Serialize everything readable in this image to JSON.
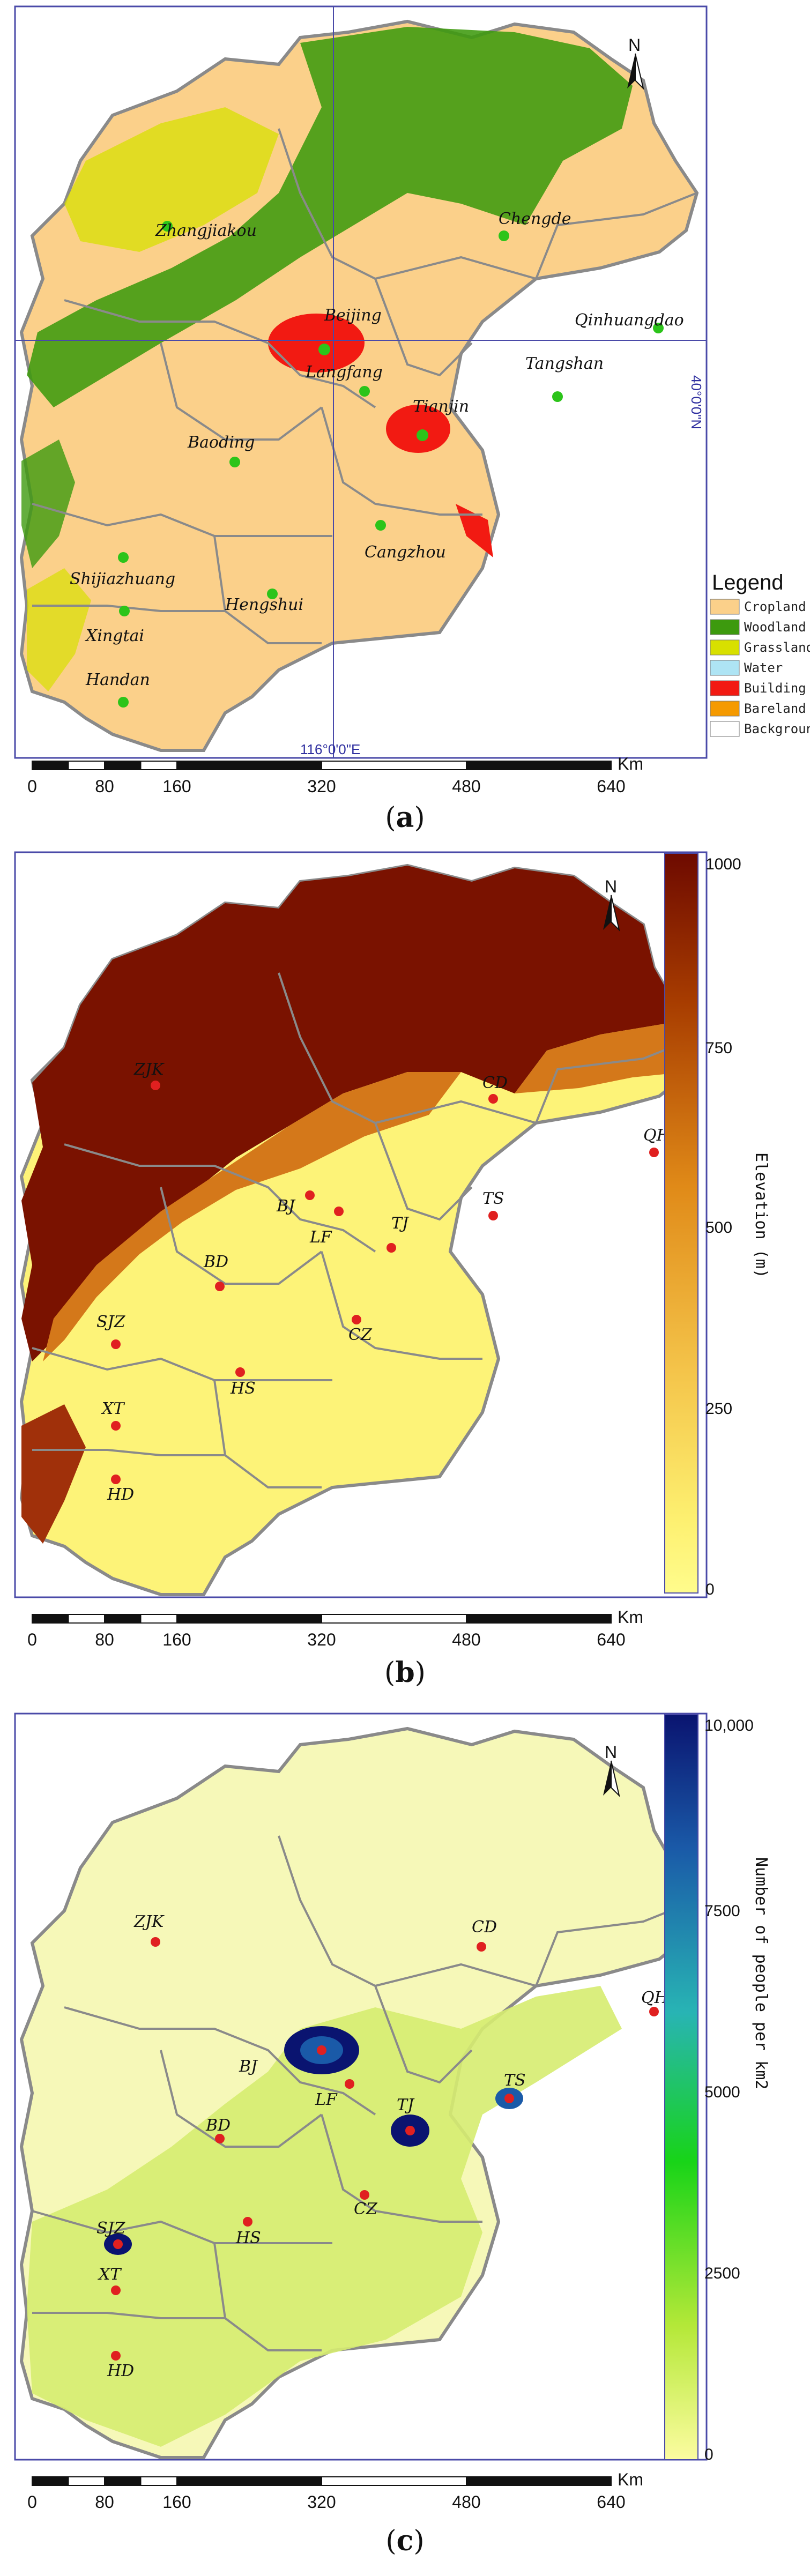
{
  "panels": [
    {
      "id": "a",
      "caption_open": "(",
      "caption_letter": "a",
      "caption_close": ")",
      "north": "N",
      "coord_lat": "40°0'0\"N",
      "coord_lon": "116°0'0\"E",
      "cities": [
        "Zhangjiakou",
        "Chengde",
        "Beijing",
        "Qinhuangdao",
        "Tangshan",
        "Langfang",
        "Tianjin",
        "Baoding",
        "Cangzhou",
        "Shijiazhuang",
        "Hengshui",
        "Xingtai",
        "Handan"
      ],
      "legend_title": "Legend",
      "legend": [
        {
          "label": "Cropland",
          "color": "#fbd08a"
        },
        {
          "label": "Woodland",
          "color": "#3d9a0e"
        },
        {
          "label": "Grassland",
          "color": "#d8e000"
        },
        {
          "label": "Water",
          "color": "#aee4f4"
        },
        {
          "label": "Building",
          "color": "#f21a12"
        },
        {
          "label": "Bareland",
          "color": "#f59a00"
        },
        {
          "label": "Background",
          "color": "#ffffff"
        }
      ]
    },
    {
      "id": "b",
      "caption_open": "(",
      "caption_letter": "b",
      "caption_close": ")",
      "north": "N",
      "cities": [
        "ZJK",
        "CD",
        "QHD",
        "BJ",
        "TS",
        "LF",
        "TJ",
        "BD",
        "SJZ",
        "CZ",
        "HS",
        "XT",
        "HD"
      ],
      "colorbar_label": "Elevation (m)",
      "colorbar_ticks": [
        "1000",
        "750",
        "500",
        "250",
        "0"
      ],
      "colorbar_colors": [
        "#6e0a00",
        "#a73c00",
        "#e08a18",
        "#f4c44a",
        "#fdf070",
        "#fffc8c"
      ]
    },
    {
      "id": "c",
      "caption_open": "(",
      "caption_letter": "c",
      "caption_close": ")",
      "north": "N",
      "cities": [
        "ZJK",
        "CD",
        "QHD",
        "BJ",
        "TS",
        "TJ",
        "LF",
        "BD",
        "SJZ",
        "CZ",
        "HS",
        "XT",
        "HD"
      ],
      "colorbar_label": "Number of people per km2",
      "colorbar_ticks": [
        "10,000",
        "7500",
        "5000",
        "2500",
        "0"
      ],
      "colorbar_colors": [
        "#0a1470",
        "#1a5aa8",
        "#28b4b4",
        "#18d418",
        "#b4e838",
        "#fcfca0"
      ]
    }
  ],
  "scalebar": {
    "ticks": [
      "0",
      "80",
      "160",
      "320",
      "480",
      "640"
    ],
    "unit": "Km"
  }
}
